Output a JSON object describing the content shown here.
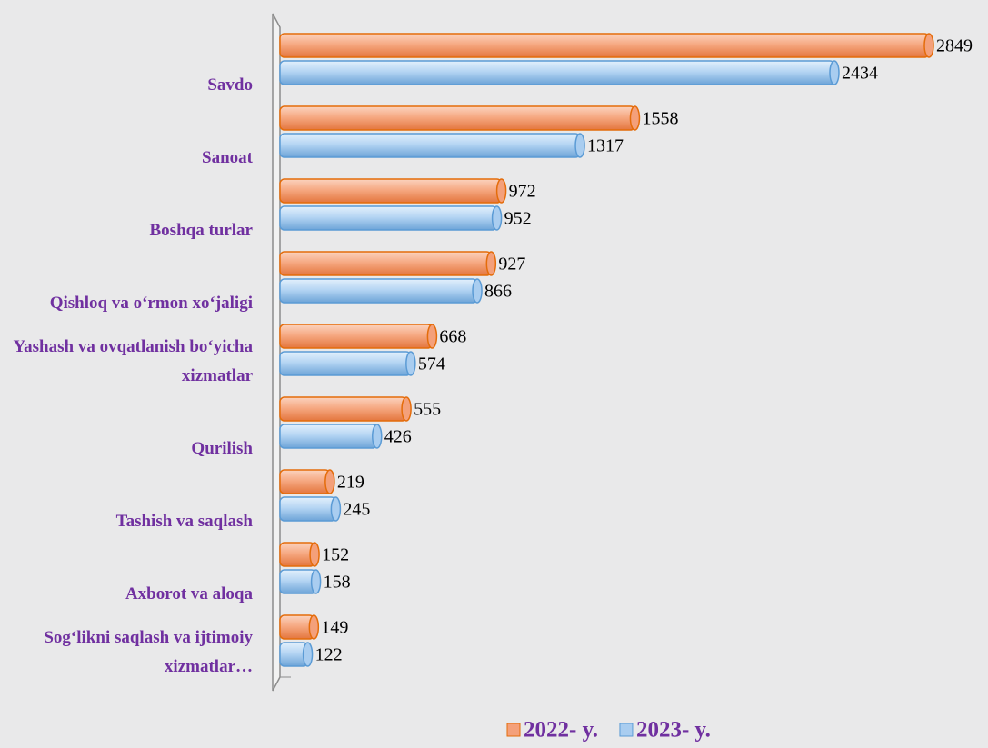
{
  "chart_data": {
    "type": "bar",
    "orientation": "horizontal",
    "categories": [
      "Savdo",
      "Sanoat",
      "Boshqa turlar",
      "Qishloq va o‘rmon xo‘jaligi",
      "Yashash va ovqatlanish bo‘yicha xizmatlar",
      "Qurilish",
      "Tashish va saqlash",
      "Axborot va aloqa",
      "Sog‘likni saqlash va ijtimoiy xizmatlar…"
    ],
    "series": [
      {
        "name": "2022- y.",
        "color": "#f4a07a",
        "values": [
          2849,
          1558,
          972,
          927,
          668,
          555,
          219,
          152,
          149
        ]
      },
      {
        "name": "2023- y.",
        "color": "#a9cdf0",
        "values": [
          2434,
          1317,
          952,
          866,
          574,
          426,
          245,
          158,
          122
        ]
      }
    ],
    "legend": "bottom"
  }
}
